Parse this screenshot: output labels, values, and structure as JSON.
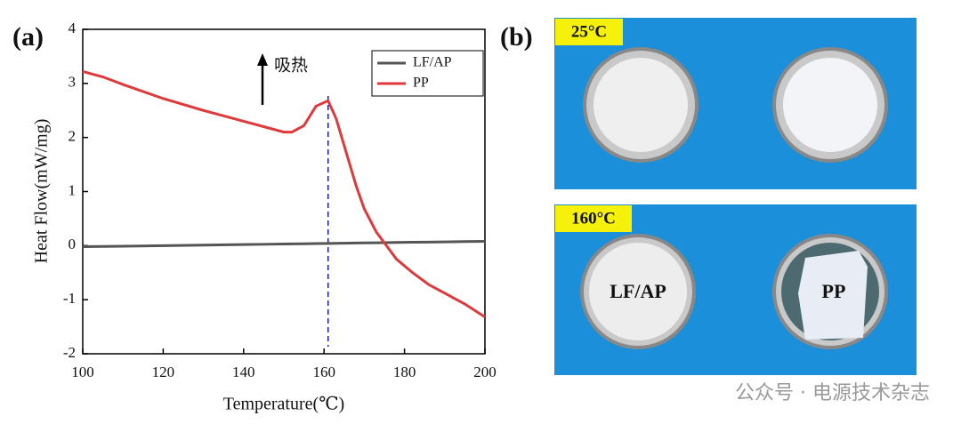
{
  "chart_data": {
    "type": "line",
    "panel_label": "(a)",
    "x_label": "Temperature(℃)",
    "y_label": "Heat Flow(mW/mg)",
    "annotation": "吸热",
    "vline": 161,
    "x": [
      100,
      105,
      110,
      120,
      130,
      140,
      145,
      150,
      152,
      155,
      158,
      161,
      163,
      165,
      168,
      170,
      173,
      175,
      178,
      182,
      186,
      190,
      195,
      200
    ],
    "series": [
      {
        "name": "LF/AP",
        "color": "#555555",
        "values": [
          -0.02,
          -0.015,
          -0.01,
          0,
          0.01,
          0.02,
          0.025,
          0.03,
          0.032,
          0.035,
          0.038,
          0.041,
          0.043,
          0.045,
          0.048,
          0.05,
          0.053,
          0.055,
          0.058,
          0.062,
          0.066,
          0.07,
          0.075,
          0.08
        ]
      },
      {
        "name": "PP",
        "color": "#e0393b",
        "values": [
          3.22,
          3.12,
          2.98,
          2.72,
          2.5,
          2.3,
          2.2,
          2.1,
          2.1,
          2.22,
          2.58,
          2.68,
          2.35,
          1.85,
          1.1,
          0.68,
          0.25,
          0.05,
          -0.25,
          -0.5,
          -0.72,
          -0.88,
          -1.08,
          -1.32
        ]
      }
    ],
    "xlim": [
      100,
      200
    ],
    "xticks": [
      100,
      120,
      140,
      160,
      180,
      200
    ],
    "ylim": [
      -2,
      4
    ],
    "yticks": [
      -2,
      -1,
      0,
      1,
      2,
      3,
      4
    ],
    "legend": "upper right"
  },
  "photo_panel": {
    "panel_label": "(b)",
    "top_label": "25°C",
    "bottom_label": "160°C",
    "samples": [
      "LF/AP",
      "PP"
    ]
  },
  "watermark": "公众号 · 电源技术杂志"
}
